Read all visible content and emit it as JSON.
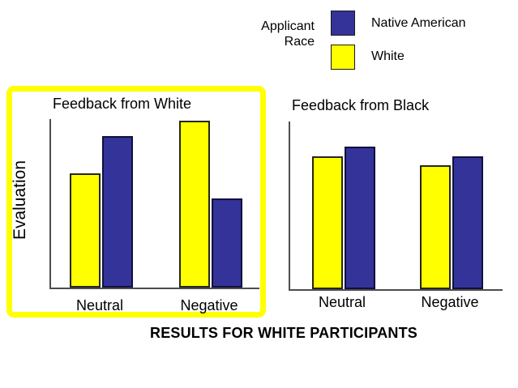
{
  "page": {
    "background": "#ffffff"
  },
  "legend": {
    "title_line1": "Applicant",
    "title_line2": "Race",
    "items": [
      {
        "label": "Native American",
        "color": "#333399"
      },
      {
        "label": "White",
        "color": "#ffff00"
      }
    ]
  },
  "caption": "RESULTS FOR WHITE PARTICIPANTS",
  "chart_data": [
    {
      "type": "bar",
      "title": "Feedback from White",
      "ylabel": "Evaluation",
      "xlabel": "",
      "categories": [
        "Neutral",
        "Negative"
      ],
      "series": [
        {
          "name": "White",
          "color": "#ffff00",
          "values": [
            0.68,
            0.99
          ]
        },
        {
          "name": "Native American",
          "color": "#333399",
          "values": [
            0.9,
            0.53
          ]
        }
      ],
      "ylim": [
        0,
        1
      ],
      "y_ticks": "none - axis has no numeric labels",
      "grid": false,
      "highlighted": true,
      "legend_position": "shared legend at top of figure",
      "series_order_on_x": [
        "White",
        "Native American"
      ],
      "note": "values are relative bar heights (fraction of plot height); no numeric scale shown"
    },
    {
      "type": "bar",
      "title": "Feedback from Black",
      "ylabel": "",
      "xlabel": "",
      "categories": [
        "Neutral",
        "Negative"
      ],
      "series": [
        {
          "name": "White",
          "color": "#ffff00",
          "values": [
            0.79,
            0.74
          ]
        },
        {
          "name": "Native American",
          "color": "#333399",
          "values": [
            0.85,
            0.79
          ]
        }
      ],
      "ylim": [
        0,
        1
      ],
      "y_ticks": "none - axis has no numeric labels",
      "grid": false,
      "highlighted": false,
      "series_order_on_x": [
        "White",
        "Native American"
      ]
    }
  ],
  "colors": {
    "native_american_bar": "#333399",
    "white_bar": "#ffff00",
    "highlight_border": "#ffff00",
    "axis": "#4d4d4d",
    "text": "#000000"
  }
}
